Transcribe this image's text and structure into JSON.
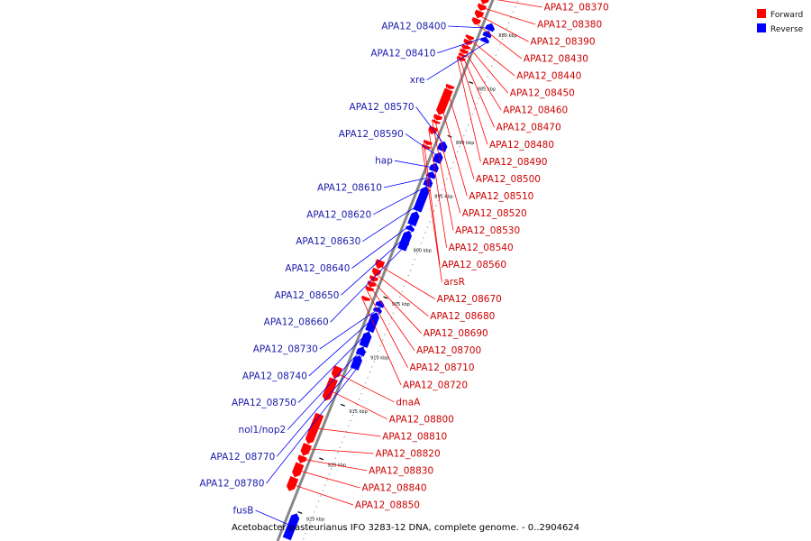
{
  "caption": "Acetobacter pasteurianus IFO 3283-12 DNA, complete genome. - 0..2904624",
  "legend": [
    {
      "label": "Forward",
      "color": "#ff0000"
    },
    {
      "label": "Reverse",
      "color": "#0000ff"
    }
  ],
  "colors": {
    "forward": "#ff0000",
    "reverse": "#0000ff",
    "forward_label": "#cc0000",
    "reverse_label": "#1a1aaa",
    "axis": "#888888"
  },
  "scale": {
    "kbp_min": 877,
    "kbp_max": 928
  },
  "ticks": [
    {
      "kbp": 880,
      "label": "880 kbp"
    },
    {
      "kbp": 885,
      "label": "885 kbp"
    },
    {
      "kbp": 890,
      "label": "890 kbp"
    },
    {
      "kbp": 895,
      "label": "895 kbp"
    },
    {
      "kbp": 900,
      "label": "900 kbp"
    },
    {
      "kbp": 905,
      "label": "905 kbp"
    },
    {
      "kbp": 910,
      "label": "910 kbp"
    },
    {
      "kbp": 915,
      "label": "915 kbp"
    },
    {
      "kbp": 920,
      "label": "920 kbp"
    },
    {
      "kbp": 925,
      "label": "925 kbp"
    }
  ],
  "genes": [
    {
      "name": "APA12_08370",
      "strand": "forward",
      "start": 877.3,
      "end": 878.3
    },
    {
      "name": "APA12_08380",
      "strand": "forward",
      "start": 878.4,
      "end": 878.9
    },
    {
      "name": "APA12_08390",
      "strand": "forward",
      "start": 879.0,
      "end": 879.6
    },
    {
      "name": "APA12_08400",
      "strand": "reverse",
      "start": 879.6,
      "end": 880.2
    },
    {
      "name": "APA12_08410",
      "strand": "reverse",
      "start": 880.3,
      "end": 880.8
    },
    {
      "name": "xre",
      "strand": "reverse",
      "start": 880.9,
      "end": 881.3
    },
    {
      "name": "APA12_08430",
      "strand": "forward",
      "start": 879.7,
      "end": 880.2
    },
    {
      "name": "APA12_08440",
      "strand": "forward",
      "start": 881.3,
      "end": 881.6
    },
    {
      "name": "APA12_08450",
      "strand": "forward",
      "start": 881.7,
      "end": 882.1
    },
    {
      "name": "APA12_08460",
      "strand": "forward",
      "start": 882.2,
      "end": 882.5
    },
    {
      "name": "APA12_08470",
      "strand": "forward",
      "start": 882.6,
      "end": 882.9
    },
    {
      "name": "APA12_08480",
      "strand": "forward",
      "start": 883.0,
      "end": 883.2
    },
    {
      "name": "APA12_08490",
      "strand": "forward",
      "start": 883.3,
      "end": 883.6
    },
    {
      "name": "APA12_08500",
      "strand": "forward",
      "start": 885.9,
      "end": 886.2
    },
    {
      "name": "APA12_08510",
      "strand": "forward",
      "start": 886.3,
      "end": 888.6
    },
    {
      "name": "APA12_08520",
      "strand": "forward",
      "start": 888.7,
      "end": 889.1
    },
    {
      "name": "APA12_08530",
      "strand": "forward",
      "start": 889.2,
      "end": 889.4
    },
    {
      "name": "APA12_08540",
      "strand": "forward",
      "start": 889.8,
      "end": 890.4
    },
    {
      "name": "APA12_08560",
      "strand": "forward",
      "start": 891.1,
      "end": 891.4
    },
    {
      "name": "arsR",
      "strand": "forward",
      "start": 891.5,
      "end": 891.8
    },
    {
      "name": "APA12_08570",
      "strand": "reverse",
      "start": 890.6,
      "end": 891.4
    },
    {
      "name": "APA12_08590",
      "strand": "reverse",
      "start": 891.6,
      "end": 892.5
    },
    {
      "name": "hap",
      "strand": "reverse",
      "start": 892.6,
      "end": 893.3
    },
    {
      "name": "APA12_08610",
      "strand": "reverse",
      "start": 893.4,
      "end": 893.9
    },
    {
      "name": "APA12_08620",
      "strand": "reverse",
      "start": 894.0,
      "end": 894.7
    },
    {
      "name": "APA12_08630",
      "strand": "reverse",
      "start": 894.8,
      "end": 897.0
    },
    {
      "name": "APA12_08640",
      "strand": "reverse",
      "start": 897.1,
      "end": 898.3
    },
    {
      "name": "APA12_08650",
      "strand": "reverse",
      "start": 898.4,
      "end": 898.8
    },
    {
      "name": "APA12_08660",
      "strand": "reverse",
      "start": 898.9,
      "end": 900.6
    },
    {
      "name": "APA12_08670",
      "strand": "forward",
      "start": 902.2,
      "end": 902.9
    },
    {
      "name": "APA12_08680",
      "strand": "forward",
      "start": 903.0,
      "end": 903.6
    },
    {
      "name": "APA12_08690",
      "strand": "forward",
      "start": 903.7,
      "end": 904.1
    },
    {
      "name": "APA12_08700",
      "strand": "forward",
      "start": 904.2,
      "end": 904.6
    },
    {
      "name": "APA12_08710",
      "strand": "forward",
      "start": 904.7,
      "end": 905.0
    },
    {
      "name": "APA12_08720",
      "strand": "forward",
      "start": 905.6,
      "end": 905.9
    },
    {
      "name": "APA12_08730",
      "strand": "reverse",
      "start": 905.4,
      "end": 905.9
    },
    {
      "name": "APA12_08740",
      "strand": "reverse",
      "start": 906.0,
      "end": 906.4
    },
    {
      "name": "APA12_08750",
      "strand": "reverse",
      "start": 906.5,
      "end": 908.2
    },
    {
      "name": "nol1/nop2",
      "strand": "reverse",
      "start": 908.3,
      "end": 909.6
    },
    {
      "name": "APA12_08770",
      "strand": "reverse",
      "start": 909.7,
      "end": 910.4
    },
    {
      "name": "APA12_08780",
      "strand": "reverse",
      "start": 910.5,
      "end": 911.7
    },
    {
      "name": "dnaA",
      "strand": "forward",
      "start": 912.1,
      "end": 913.1
    },
    {
      "name": "APA12_08800",
      "strand": "forward",
      "start": 913.2,
      "end": 915.2
    },
    {
      "name": "APA12_08810",
      "strand": "forward",
      "start": 916.5,
      "end": 919.2
    },
    {
      "name": "APA12_08820",
      "strand": "forward",
      "start": 919.3,
      "end": 920.3
    },
    {
      "name": "APA12_08830",
      "strand": "forward",
      "start": 920.4,
      "end": 921.0
    },
    {
      "name": "APA12_08840",
      "strand": "forward",
      "start": 921.1,
      "end": 922.3
    },
    {
      "name": "APA12_08850",
      "strand": "forward",
      "start": 922.4,
      "end": 923.6
    },
    {
      "name": "fusB",
      "strand": "reverse",
      "start": 925.2,
      "end": 927.5
    }
  ]
}
